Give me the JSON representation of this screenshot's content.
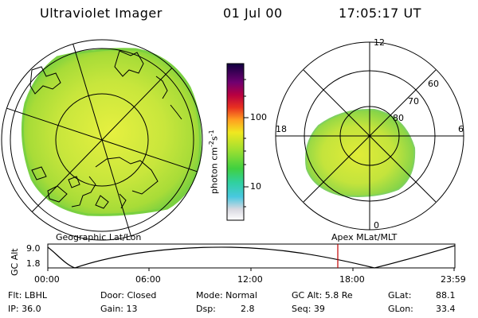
{
  "header": {
    "title": "Ultraviolet Imager",
    "date": "01 Jul 00",
    "time": "17:05:17 UT"
  },
  "colors": {
    "fill_primary": "#c6e840",
    "fill_secondary": "#88d838",
    "fill_accent": "#2ec8b0",
    "altitude_marker": "#c00000"
  },
  "colorbar": {
    "unit_label": "photon cm",
    "unit_exp1": "-2",
    "unit_s": "s",
    "unit_exp2": "-1",
    "tick_100": "100",
    "tick_10": "10"
  },
  "polar_plot": {
    "mlt_12": "12",
    "mlt_18": "18",
    "mlt_6": "6",
    "mlt_0": "0",
    "lat_60": "60",
    "lat_70": "70",
    "lat_80": "80"
  },
  "labels": {
    "left_caption": "Geographic Lat/Lon",
    "right_caption": "Apex MLat/MLT"
  },
  "altitude_plot": {
    "ylabel": "GC Alt",
    "ytick_top": "9.0",
    "ytick_bottom": "1.8",
    "xticks": [
      "00:00",
      "06:00",
      "12:00",
      "18:00",
      "23:59"
    ]
  },
  "status": {
    "filter": "Flt: LBHL",
    "ip": "IP: 36.0",
    "door": "Door: Closed",
    "gain": "Gain: 13",
    "mode": "Mode: Normal",
    "dsp_label": "Dsp:",
    "dsp_value": "2.8",
    "gc_alt": "GC Alt: 5.8 Re",
    "seq": "Seq: 39",
    "glat_label": "GLat:",
    "glat_value": "88.1",
    "glon_label": "GLon:",
    "glon_value": "33.4"
  }
}
